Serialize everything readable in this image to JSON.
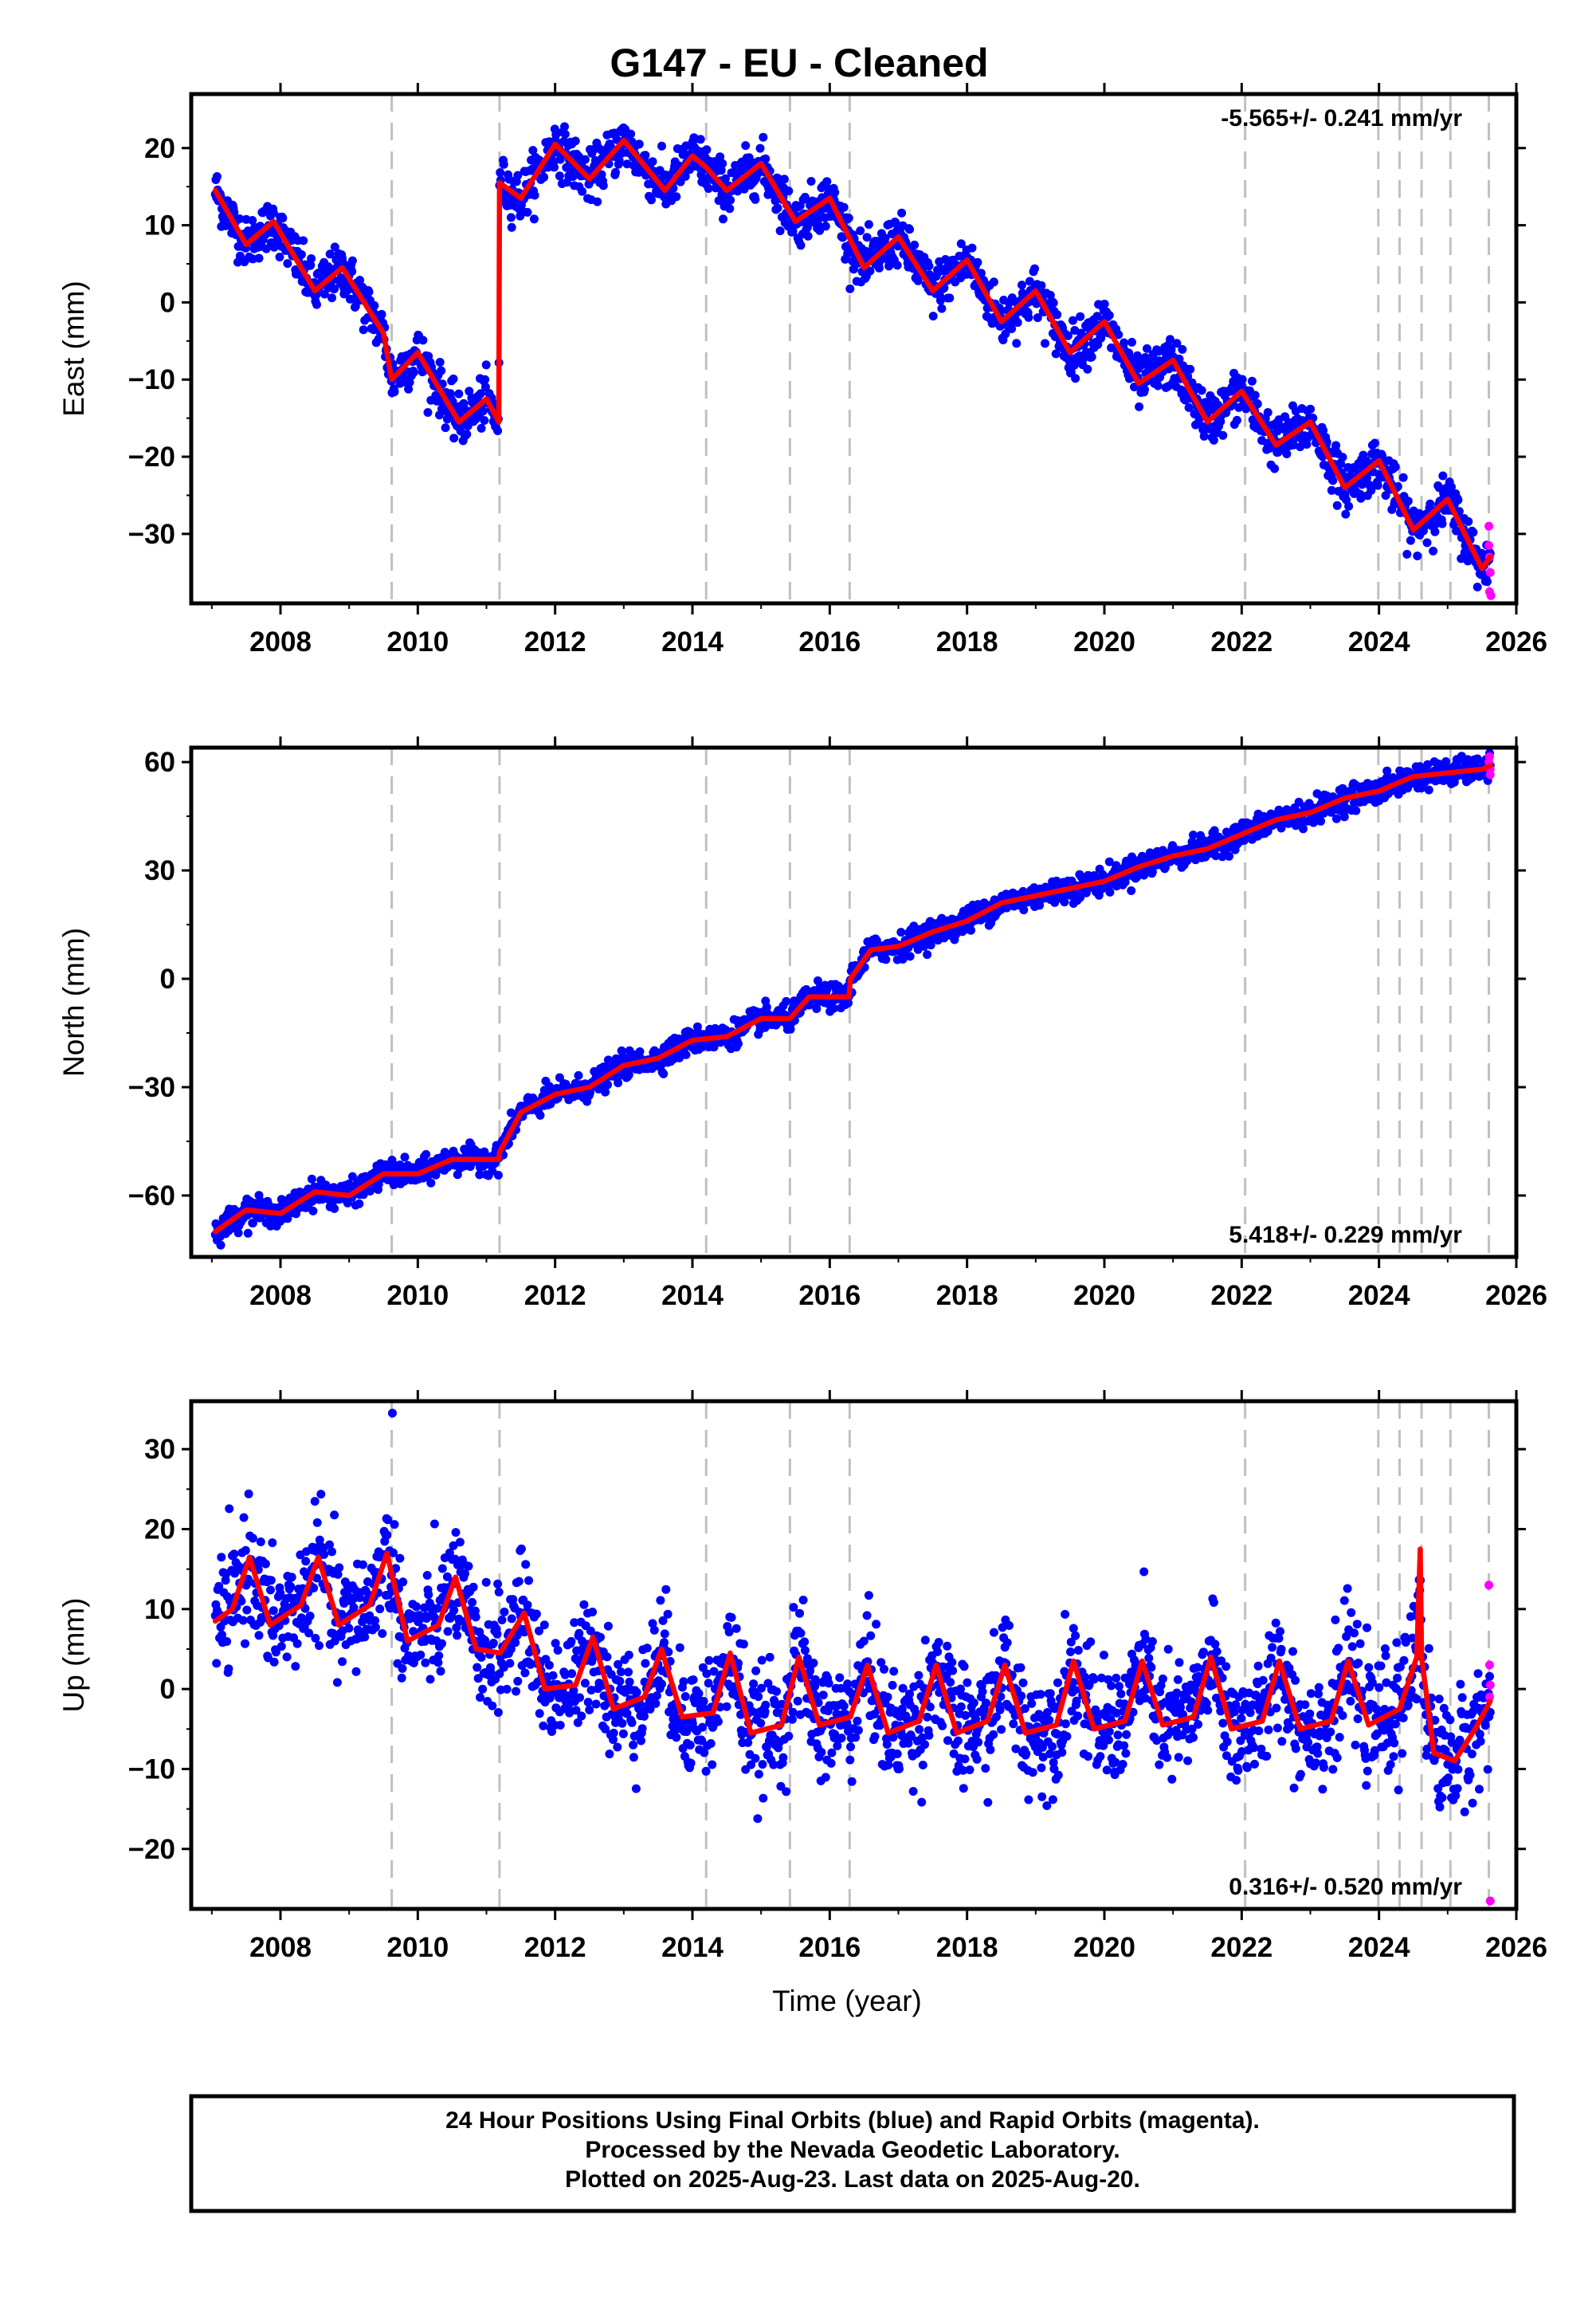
{
  "title": "G147  - EU - Cleaned",
  "xlabel": "Time (year)",
  "footer": {
    "line1": "24 Hour Positions Using Final Orbits (blue) and Rapid Orbits (magenta).",
    "line2": "Processed by the Nevada Geodetic Laboratory.",
    "line3": "Plotted on 2025-Aug-23. Last data on 2025-Aug-20."
  },
  "colors": {
    "final": "#0000ff",
    "rapid": "#ff00ff",
    "model": "#ff0000",
    "steps": "#c0c0c0"
  },
  "chart_data": [
    {
      "type": "scatter",
      "name": "east",
      "ylabel": "East (mm)",
      "rate_label": "-5.565+/- 0.241 mm/yr",
      "rate_position": "top-right",
      "xlim": [
        2006.7,
        2026.0
      ],
      "ylim": [
        -39,
        27
      ],
      "x_ticks": [
        2008,
        2010,
        2012,
        2014,
        2016,
        2018,
        2020,
        2022,
        2024,
        2026
      ],
      "y_ticks": [
        20,
        10,
        0,
        -10,
        -20,
        -30
      ],
      "y_tick_labels": [
        "20",
        "10",
        "0",
        "−10",
        "−20",
        "−30"
      ],
      "step_epochs": [
        2009.62,
        2011.19,
        2014.2,
        2015.42,
        2016.29,
        2023.99,
        2024.3,
        2024.62,
        2025.04,
        2025.6,
        2022.05
      ],
      "model_keypoints": [
        [
          2007.05,
          14.5
        ],
        [
          2007.5,
          7.5
        ],
        [
          2007.9,
          10.5
        ],
        [
          2008.5,
          1.5
        ],
        [
          2008.9,
          4.5
        ],
        [
          2009.5,
          -4.0
        ],
        [
          2009.62,
          -10.0
        ],
        [
          2010.0,
          -6.5
        ],
        [
          2010.6,
          -15.5
        ],
        [
          2011.0,
          -12.5
        ],
        [
          2011.18,
          -15.5
        ],
        [
          2011.19,
          15.5
        ],
        [
          2011.5,
          13.5
        ],
        [
          2012.0,
          20.5
        ],
        [
          2012.5,
          16.0
        ],
        [
          2013.0,
          21.0
        ],
        [
          2013.6,
          14.5
        ],
        [
          2014.0,
          19.0
        ],
        [
          2014.2,
          17.5
        ],
        [
          2014.5,
          14.5
        ],
        [
          2015.0,
          18.0
        ],
        [
          2015.5,
          10.5
        ],
        [
          2016.0,
          13.5
        ],
        [
          2016.5,
          4.5
        ],
        [
          2017.0,
          8.5
        ],
        [
          2017.5,
          1.5
        ],
        [
          2018.0,
          5.5
        ],
        [
          2018.5,
          -2.5
        ],
        [
          2019.0,
          1.5
        ],
        [
          2019.5,
          -6.5
        ],
        [
          2020.0,
          -2.5
        ],
        [
          2020.5,
          -10.5
        ],
        [
          2021.0,
          -7.5
        ],
        [
          2021.5,
          -15.5
        ],
        [
          2022.0,
          -11.5
        ],
        [
          2022.5,
          -18.5
        ],
        [
          2023.0,
          -15.5
        ],
        [
          2023.5,
          -24.0
        ],
        [
          2024.0,
          -20.5
        ],
        [
          2024.5,
          -29.5
        ],
        [
          2025.0,
          -25.5
        ],
        [
          2025.5,
          -34.5
        ],
        [
          2025.62,
          -33.0
        ]
      ],
      "scatter_sigma": 1.6,
      "rapid_points": [
        [
          2025.6,
          -29.0
        ],
        [
          2025.6,
          -31.5
        ],
        [
          2025.61,
          -33.0
        ],
        [
          2025.62,
          -35.0
        ],
        [
          2025.61,
          -37.5
        ],
        [
          2025.63,
          -38.0
        ]
      ]
    },
    {
      "type": "scatter",
      "name": "north",
      "ylabel": "North (mm)",
      "rate_label": "5.418+/- 0.229 mm/yr",
      "rate_position": "bottom-right",
      "xlim": [
        2006.7,
        2026.0
      ],
      "ylim": [
        -77,
        64
      ],
      "x_ticks": [
        2008,
        2010,
        2012,
        2014,
        2016,
        2018,
        2020,
        2022,
        2024,
        2026
      ],
      "y_ticks": [
        60,
        30,
        0,
        -30,
        -60
      ],
      "y_tick_labels": [
        "60",
        "30",
        "0",
        "−30",
        "−60"
      ],
      "step_epochs": [
        2009.62,
        2011.19,
        2014.2,
        2015.42,
        2016.29,
        2022.05,
        2023.99,
        2024.3,
        2024.62,
        2025.04,
        2025.6
      ],
      "model_keypoints": [
        [
          2007.05,
          -70
        ],
        [
          2007.5,
          -64
        ],
        [
          2008.0,
          -65
        ],
        [
          2008.5,
          -59
        ],
        [
          2009.0,
          -60
        ],
        [
          2009.5,
          -54
        ],
        [
          2010.0,
          -54
        ],
        [
          2010.5,
          -50
        ],
        [
          2011.18,
          -50
        ],
        [
          2011.19,
          -48
        ],
        [
          2011.5,
          -37
        ],
        [
          2012.0,
          -32
        ],
        [
          2012.5,
          -30
        ],
        [
          2013.0,
          -24
        ],
        [
          2013.5,
          -22
        ],
        [
          2014.0,
          -17
        ],
        [
          2014.5,
          -16
        ],
        [
          2015.0,
          -11
        ],
        [
          2015.42,
          -11
        ],
        [
          2015.7,
          -5
        ],
        [
          2016.28,
          -5
        ],
        [
          2016.3,
          0
        ],
        [
          2016.6,
          8
        ],
        [
          2017.0,
          9
        ],
        [
          2017.5,
          13
        ],
        [
          2018.0,
          16
        ],
        [
          2018.5,
          21
        ],
        [
          2019.0,
          23
        ],
        [
          2019.5,
          25
        ],
        [
          2020.0,
          27
        ],
        [
          2020.5,
          31
        ],
        [
          2021.0,
          34
        ],
        [
          2021.5,
          36
        ],
        [
          2022.0,
          40
        ],
        [
          2022.5,
          44
        ],
        [
          2023.0,
          46
        ],
        [
          2023.5,
          50
        ],
        [
          2024.0,
          52
        ],
        [
          2024.5,
          56
        ],
        [
          2025.0,
          57
        ],
        [
          2025.5,
          58
        ],
        [
          2025.62,
          59
        ]
      ],
      "scatter_sigma": 1.7,
      "rapid_points": [
        [
          2025.6,
          60.0
        ],
        [
          2025.61,
          61.5
        ],
        [
          2025.62,
          58.0
        ],
        [
          2025.62,
          56.5
        ]
      ]
    },
    {
      "type": "scatter",
      "name": "up",
      "ylabel": "Up (mm)",
      "rate_label": "0.316+/- 0.520 mm/yr",
      "rate_position": "bottom-right",
      "xlim": [
        2006.7,
        2026.0
      ],
      "ylim": [
        -27.5,
        36
      ],
      "x_ticks": [
        2008,
        2010,
        2012,
        2014,
        2016,
        2018,
        2020,
        2022,
        2024,
        2026
      ],
      "y_ticks": [
        30,
        20,
        10,
        0,
        -10,
        -20
      ],
      "y_tick_labels": [
        "30",
        "20",
        "10",
        "0",
        "−10",
        "−20"
      ],
      "step_epochs": [
        2009.62,
        2011.19,
        2014.2,
        2015.42,
        2016.29,
        2022.05,
        2023.99,
        2024.3,
        2024.62,
        2025.04,
        2025.6
      ],
      "model_keypoints": [
        [
          2007.05,
          8.5
        ],
        [
          2007.3,
          10.0
        ],
        [
          2007.55,
          16.5
        ],
        [
          2007.85,
          8.0
        ],
        [
          2008.3,
          10.5
        ],
        [
          2008.55,
          16.5
        ],
        [
          2008.85,
          8.0
        ],
        [
          2009.3,
          10.5
        ],
        [
          2009.55,
          17.0
        ],
        [
          2009.85,
          6.0
        ],
        [
          2010.3,
          8.0
        ],
        [
          2010.55,
          14.0
        ],
        [
          2010.85,
          5.0
        ],
        [
          2011.2,
          4.5
        ],
        [
          2011.55,
          9.5
        ],
        [
          2011.85,
          0.0
        ],
        [
          2012.3,
          0.5
        ],
        [
          2012.55,
          6.5
        ],
        [
          2012.85,
          -2.5
        ],
        [
          2013.3,
          -1.0
        ],
        [
          2013.55,
          5.0
        ],
        [
          2013.85,
          -3.5
        ],
        [
          2014.3,
          -3.0
        ],
        [
          2014.55,
          4.5
        ],
        [
          2014.85,
          -5.5
        ],
        [
          2015.3,
          -4.5
        ],
        [
          2015.55,
          4.0
        ],
        [
          2015.85,
          -4.5
        ],
        [
          2016.3,
          -3.5
        ],
        [
          2016.55,
          3.0
        ],
        [
          2016.85,
          -5.5
        ],
        [
          2017.3,
          -4.0
        ],
        [
          2017.55,
          3.0
        ],
        [
          2017.85,
          -5.5
        ],
        [
          2018.3,
          -4.0
        ],
        [
          2018.55,
          3.0
        ],
        [
          2018.85,
          -5.5
        ],
        [
          2019.3,
          -4.5
        ],
        [
          2019.55,
          3.5
        ],
        [
          2019.85,
          -5.0
        ],
        [
          2020.3,
          -4.0
        ],
        [
          2020.55,
          3.5
        ],
        [
          2020.85,
          -4.5
        ],
        [
          2021.3,
          -3.5
        ],
        [
          2021.55,
          4.0
        ],
        [
          2021.85,
          -5.0
        ],
        [
          2022.3,
          -4.0
        ],
        [
          2022.55,
          3.5
        ],
        [
          2022.85,
          -5.0
        ],
        [
          2023.3,
          -4.0
        ],
        [
          2023.55,
          3.5
        ],
        [
          2023.85,
          -4.5
        ],
        [
          2024.3,
          -2.5
        ],
        [
          2024.55,
          4.0
        ],
        [
          2024.6,
          17.5
        ],
        [
          2024.62,
          4.0
        ],
        [
          2024.8,
          -8.0
        ],
        [
          2025.1,
          -9.0
        ],
        [
          2025.4,
          -5.0
        ],
        [
          2025.62,
          -1.5
        ]
      ],
      "scatter_sigma": 3.6,
      "outliers": [
        [
          2009.63,
          34.5
        ]
      ],
      "rapid_points": [
        [
          2025.6,
          13.0
        ],
        [
          2025.61,
          3.0
        ],
        [
          2025.62,
          0.5
        ],
        [
          2025.61,
          -1.0
        ],
        [
          2025.62,
          -26.5
        ]
      ]
    }
  ]
}
